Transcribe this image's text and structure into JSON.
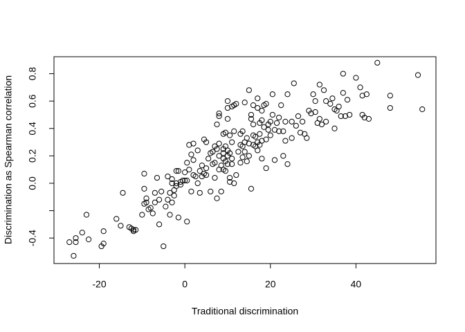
{
  "chart_data": {
    "type": "scatter",
    "x_label": "Traditional discrimination",
    "y_label": "Discrimination as Spearman correlation",
    "xlim": [
      -30.6,
      58.7
    ],
    "ylim": [
      -0.586,
      0.924
    ],
    "xticks": [
      -20,
      0,
      20,
      40
    ],
    "yticks": [
      {
        "value": -0.4,
        "label": "-0.4"
      },
      {
        "value": -0.2
      },
      {
        "value": 0,
        "label": "0.0"
      },
      {
        "value": 0.2,
        "label": "0.2"
      },
      {
        "value": 0.4,
        "label": "0.4"
      },
      {
        "value": 0.6,
        "label": "0.6"
      },
      {
        "value": 0.8,
        "label": "0.8"
      }
    ],
    "color": "#000000",
    "x": [
      -27,
      -26,
      -25.5,
      -25.5,
      -24,
      -23,
      -22.5,
      -19.5,
      -19,
      -19,
      -16,
      -15,
      -14.5,
      -13,
      -12.5,
      -12,
      -12,
      -11.5,
      -10,
      -9.5,
      -9.5,
      -9.5,
      -9,
      -9,
      -8.5,
      -8,
      -7.5,
      -7,
      -7,
      -6.5,
      -6,
      -6,
      -5.5,
      -5,
      -4.5,
      -4,
      -4,
      -3.5,
      -3.5,
      -3,
      -3,
      -3,
      -2.5,
      -2.5,
      -2,
      -2,
      -2,
      -1.5,
      -1.5,
      -1,
      -1,
      -0.5,
      0,
      0,
      0.5,
      0.5,
      0.5,
      1,
      1,
      1.5,
      1.5,
      2,
      2,
      2,
      2.5,
      3,
      3,
      3.5,
      3.5,
      4,
      4,
      4.5,
      4.5,
      5,
      5,
      5,
      5.5,
      6,
      6,
      6.5,
      6.5,
      7,
      7,
      7,
      7.5,
      7.5,
      7.5,
      8,
      8,
      8,
      8,
      8,
      8.5,
      8.5,
      9,
      9,
      9,
      9,
      9,
      9.5,
      9.5,
      9.5,
      9.5,
      10,
      10,
      10,
      10,
      10,
      10,
      10.5,
      10.5,
      10.5,
      10.5,
      11,
      11,
      11,
      11,
      11.5,
      11.5,
      11.5,
      12,
      12,
      12.5,
      13,
      13,
      13,
      13.5,
      13.5,
      13.5,
      14,
      14,
      14,
      14.5,
      14.5,
      15,
      15,
      15,
      15.5,
      15.5,
      15.5,
      16,
      16,
      16,
      16,
      16.5,
      16.5,
      17,
      17,
      17,
      17,
      17.5,
      17.5,
      17.5,
      18,
      18,
      18,
      18,
      18.5,
      18.5,
      19,
      19,
      19,
      19.5,
      19.5,
      20,
      20,
      20.5,
      20.5,
      21,
      21,
      21.5,
      22,
      22,
      22.5,
      23,
      23,
      23.5,
      23.5,
      24,
      24,
      25,
      25,
      25.5,
      26,
      26.5,
      27,
      27.5,
      28,
      28.5,
      29,
      29.5,
      30,
      30.5,
      30.5,
      31,
      31.5,
      31.5,
      32,
      32.5,
      33,
      33,
      34,
      34.5,
      35,
      35,
      35.5,
      36,
      36.5,
      37,
      37,
      37.5,
      38,
      38.5,
      40,
      41,
      41.5,
      41.5,
      42,
      42.5,
      43,
      45,
      48,
      48,
      54.5,
      55.5
    ],
    "values": [
      -0.43,
      -0.53,
      -0.4,
      -0.43,
      -0.36,
      -0.23,
      -0.41,
      -0.46,
      -0.44,
      -0.35,
      -0.26,
      -0.31,
      -0.07,
      -0.32,
      -0.33,
      -0.34,
      -0.35,
      -0.34,
      -0.23,
      -0.15,
      0.07,
      -0.04,
      -0.11,
      -0.14,
      -0.19,
      -0.18,
      -0.22,
      -0.07,
      -0.14,
      0.04,
      -0.3,
      -0.12,
      -0.06,
      -0.46,
      -0.17,
      -0.12,
      0.05,
      -0.23,
      -0.07,
      0.03,
      0,
      -0.14,
      -0.09,
      -0.05,
      0.09,
      0,
      -0.02,
      -0.25,
      0.09,
      0.01,
      -0.01,
      0.02,
      0.02,
      0.08,
      -0.28,
      0.15,
      0.02,
      0.1,
      0.28,
      0.21,
      -0.06,
      0.29,
      0.17,
      0.06,
      0.05,
      0.24,
      0,
      0.09,
      -0.07,
      0.13,
      0.05,
      0.32,
      0.07,
      0.3,
      0.11,
      0.06,
      0.18,
      0.22,
      -0.06,
      0.23,
      0.14,
      0.27,
      0.15,
      0.04,
      0.43,
      0.25,
      -0.11,
      0.29,
      0.2,
      0.1,
      0.51,
      0.49,
      -0.06,
      0.13,
      0.25,
      0.22,
      0.18,
      0.36,
      0.1,
      0.37,
      0.27,
      0.16,
      0.09,
      0.47,
      0.24,
      0.2,
      0.14,
      0.6,
      0.55,
      0.35,
      0.22,
      0.01,
      0.04,
      0.3,
      0.18,
      0.56,
      0.14,
      0,
      0.38,
      0.57,
      0.58,
      0.06,
      0.23,
      0.36,
      0.28,
      0.15,
      0.38,
      0.27,
      0.19,
      0.3,
      0.23,
      0.59,
      0.16,
      0.33,
      0.68,
      0.29,
      0.2,
      0.47,
      0.5,
      -0.04,
      0.43,
      0.35,
      0.28,
      0.57,
      0.27,
      0.34,
      0.55,
      0.62,
      0.3,
      0.24,
      0.44,
      0.36,
      0.28,
      0.46,
      0.53,
      0.31,
      0.18,
      0.57,
      0.41,
      0.58,
      0.32,
      0.11,
      0.43,
      0.39,
      0.45,
      0.35,
      0.5,
      0.65,
      0.39,
      0.17,
      0.44,
      0.38,
      0.48,
      0.57,
      0.38,
      0.2,
      0.31,
      0.45,
      0.65,
      0.14,
      0.45,
      0.33,
      0.73,
      0.42,
      0.49,
      0.37,
      0.45,
      0.36,
      0.33,
      0.53,
      0.51,
      0.65,
      0.6,
      0.52,
      0.44,
      0.47,
      0.72,
      0.43,
      0.68,
      0.6,
      0.45,
      0.58,
      0.62,
      0.4,
      0.54,
      0.53,
      0.56,
      0.49,
      0.66,
      0.8,
      0.49,
      0.61,
      0.5,
      0.77,
      0.7,
      0.64,
      0.5,
      0.48,
      0.65,
      0.47,
      0.88,
      0.64,
      0.55,
      0.79,
      0.54
    ]
  }
}
